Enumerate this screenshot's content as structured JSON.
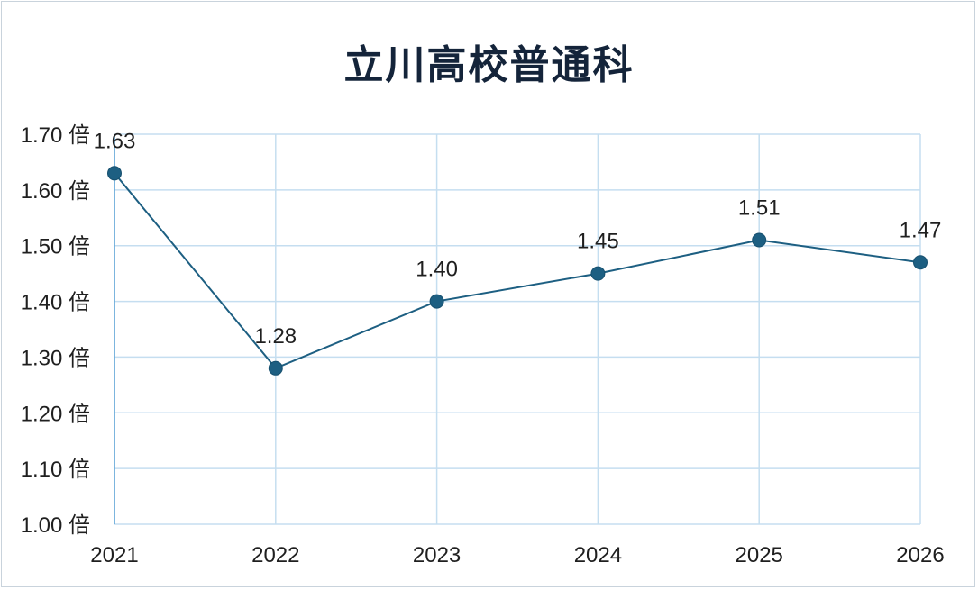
{
  "chart_data": {
    "type": "line",
    "title": "立川高校普通科",
    "xlabel": "",
    "ylabel": "",
    "categories": [
      "2021",
      "2022",
      "2023",
      "2024",
      "2025",
      "2026"
    ],
    "series": [
      {
        "values": [
          1.63,
          1.28,
          1.4,
          1.45,
          1.51,
          1.47
        ]
      }
    ],
    "data_labels": [
      "1.63",
      "1.28",
      "1.40",
      "1.45",
      "1.51",
      "1.47"
    ],
    "ylim": [
      1.0,
      1.7
    ],
    "y_ticks": [
      1.0,
      1.1,
      1.2,
      1.3,
      1.4,
      1.5,
      1.6,
      1.7
    ],
    "y_tick_labels": [
      "1.00 倍",
      "1.10 倍",
      "1.20 倍",
      "1.30 倍",
      "1.40 倍",
      "1.50 倍",
      "1.60 倍",
      "1.70 倍"
    ],
    "grid": true,
    "legend": "none",
    "colors": {
      "line": "#1d5f82",
      "marker": "#1d5f82",
      "grid": "#c5def0",
      "title": "#14243a"
    }
  }
}
